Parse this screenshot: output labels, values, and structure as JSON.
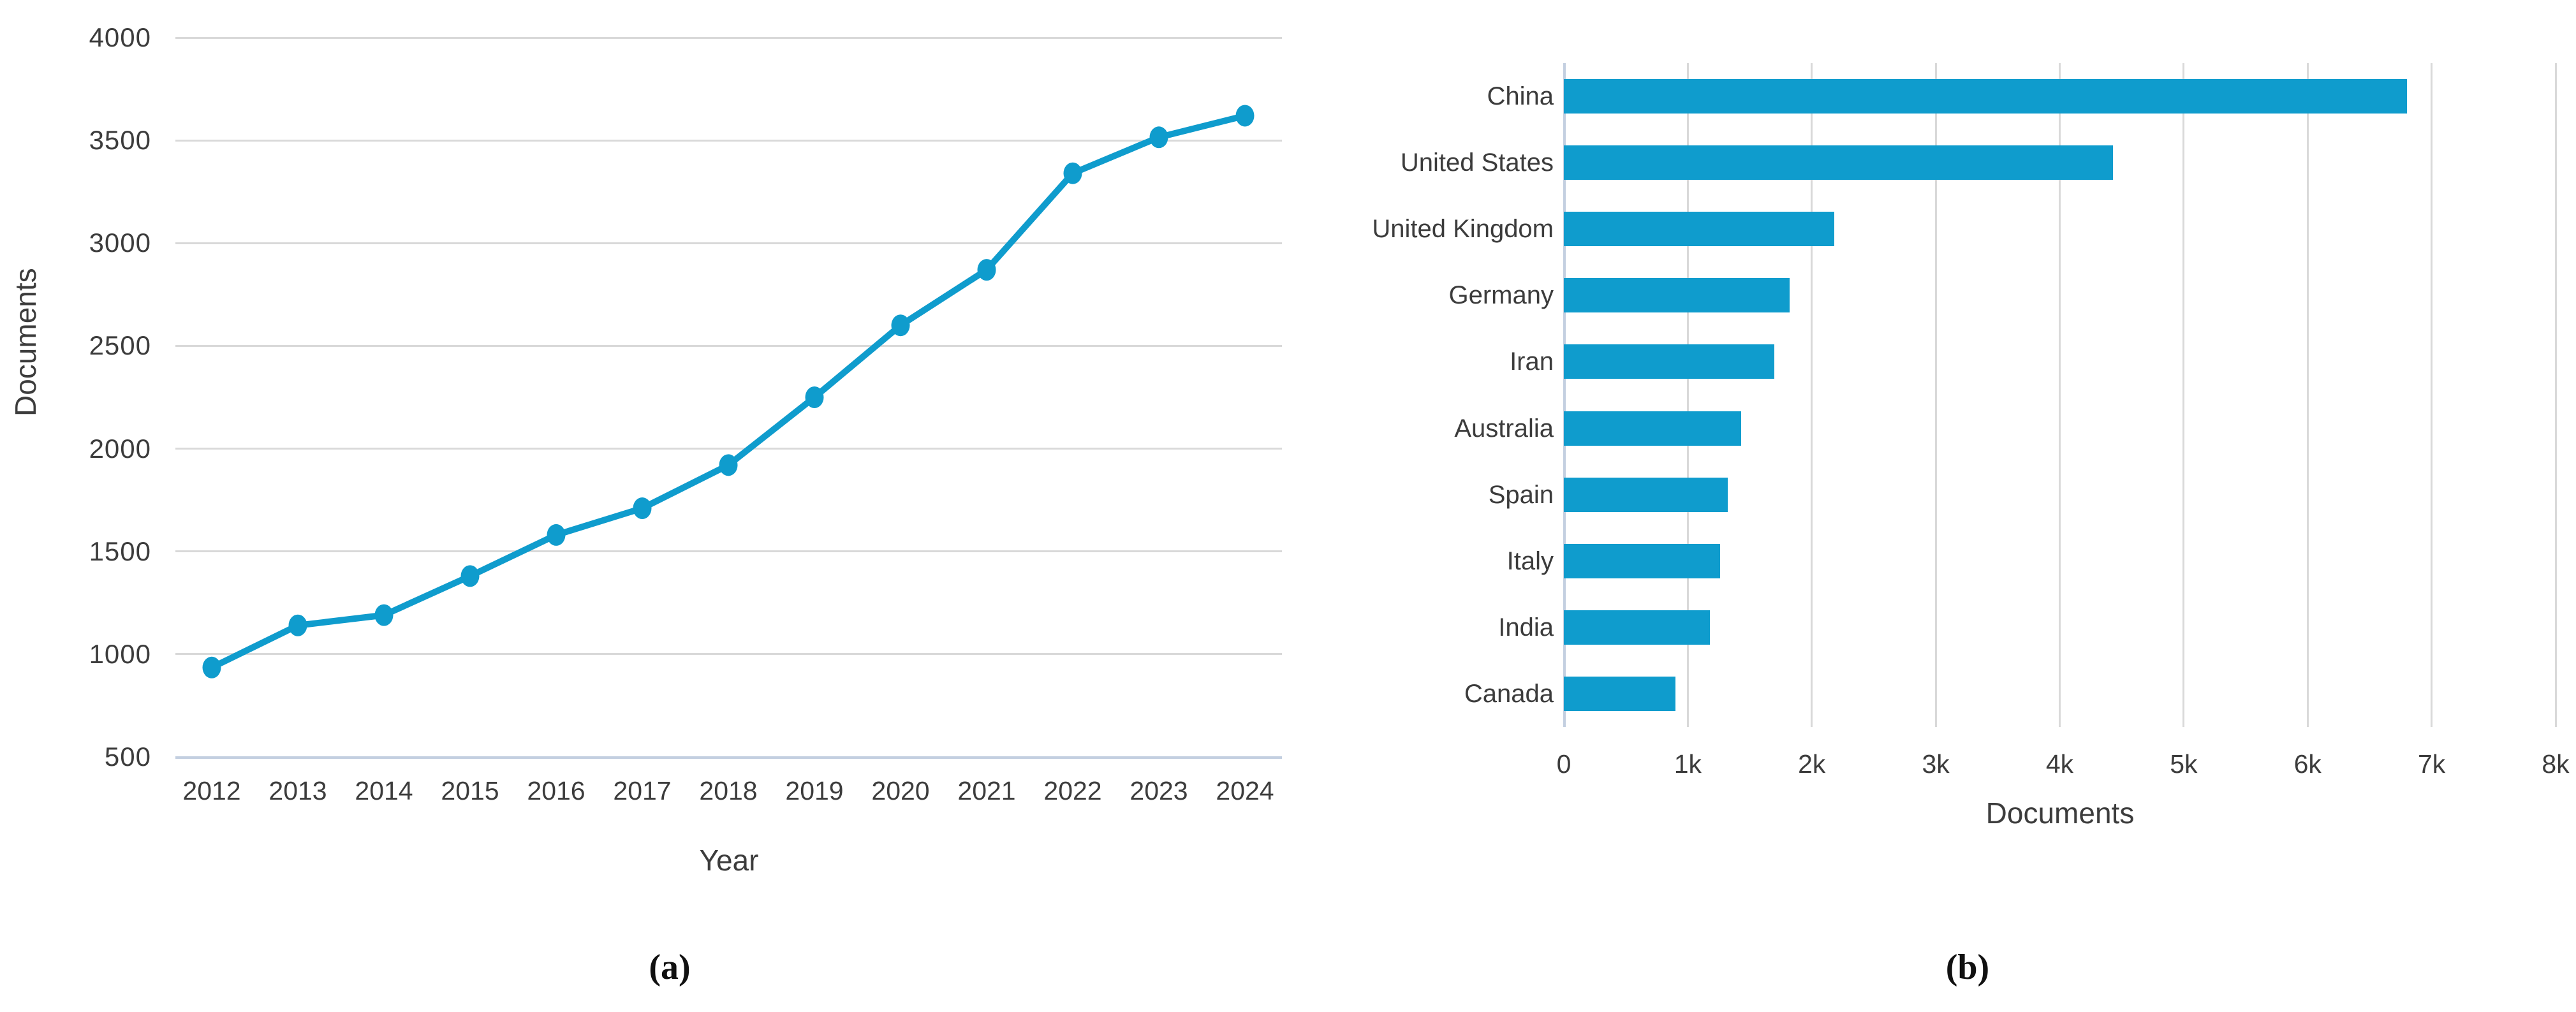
{
  "figure": {
    "panel_a_caption": "(a)",
    "panel_b_caption": "(b)",
    "background": "#ffffff"
  },
  "colors": {
    "series": "#0f9ccd",
    "gridline": "#d9d9d9",
    "axisline": "#c3cfe0",
    "text": "#3c3c3c"
  },
  "chart_data": [
    {
      "id": "a",
      "type": "line",
      "title": "",
      "xlabel": "Year",
      "ylabel": "Documents",
      "x": [
        2012,
        2013,
        2014,
        2015,
        2016,
        2017,
        2018,
        2019,
        2020,
        2021,
        2022,
        2023,
        2024
      ],
      "y": [
        935,
        1140,
        1190,
        1380,
        1580,
        1710,
        1920,
        2250,
        2600,
        2870,
        3340,
        3515,
        3620
      ],
      "ylim": [
        500,
        4000
      ],
      "ytick_step": 500,
      "grid": "horizontal",
      "legend": "none",
      "marker": "circle",
      "line_color": "#0f9ccd"
    },
    {
      "id": "b",
      "type": "bar",
      "orientation": "horizontal",
      "title": "",
      "xlabel": "Documents",
      "ylabel": "",
      "categories": [
        "China",
        "United States",
        "United Kingdom",
        "Germany",
        "Iran",
        "Australia",
        "Spain",
        "Italy",
        "India",
        "Canada"
      ],
      "values": [
        6800,
        4430,
        2180,
        1820,
        1700,
        1430,
        1320,
        1260,
        1180,
        900
      ],
      "xlim": [
        0,
        8000
      ],
      "xtick_step": 1000,
      "xtick_labels": [
        "0",
        "1k",
        "2k",
        "3k",
        "4k",
        "5k",
        "6k",
        "7k",
        "8k"
      ],
      "grid": "vertical",
      "legend": "none",
      "bar_color": "#0f9ccd"
    }
  ]
}
